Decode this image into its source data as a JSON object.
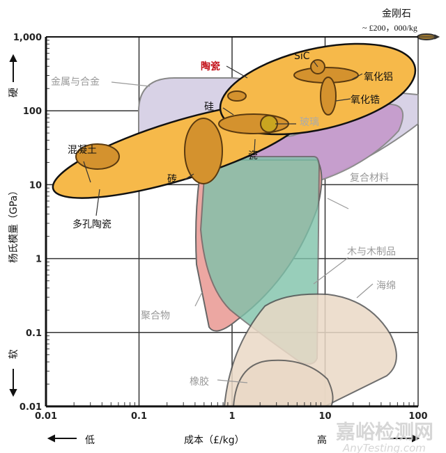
{
  "chart_data": {
    "type": "region",
    "xlabel": "成本（£/kg）",
    "ylabel": "杨氏模量（GPa）",
    "x_scale": "log",
    "y_scale": "log",
    "xlim": [
      0.01,
      100
    ],
    "ylim": [
      0.01,
      1000
    ],
    "grid": true,
    "x_ticks": [
      "0.01",
      "0.1",
      "1",
      "10",
      "100"
    ],
    "y_ticks": [
      "0.01",
      "0.1",
      "1",
      "10",
      "100",
      "1,000"
    ],
    "x_low": "低",
    "x_high": "高",
    "y_high": "硬",
    "y_low": "软",
    "diamond": {
      "label": "金刚石",
      "note": "~ £200，000/kg"
    },
    "regions": [
      {
        "name": "陶瓷",
        "color": "#f6b94a",
        "highlight": "#c4141c"
      },
      {
        "name": "金属与合金",
        "color": "#d8d2e6"
      },
      {
        "name": "复合材料",
        "color": "#c69ccc"
      },
      {
        "name": "木与木制品",
        "color": "#8fd1bd"
      },
      {
        "name": "聚合物",
        "color": "#eca7a2"
      },
      {
        "name": "海绵",
        "color": "#ead9c6"
      },
      {
        "name": "橡胶",
        "color": "#ead9c6"
      },
      {
        "name": "多孔陶瓷",
        "color": "#f6b94a"
      },
      {
        "name": "混凝土",
        "color": "#d4922e"
      },
      {
        "name": "砖",
        "color": "#d4922e"
      },
      {
        "name": "瓷",
        "color": "#d4922e"
      },
      {
        "name": "玻璃",
        "color": "#c9a520"
      },
      {
        "name": "硅",
        "color": "#d4922e"
      },
      {
        "name": "SiC",
        "color": "#d4922e"
      },
      {
        "name": "氧化铝",
        "color": "#d4922e"
      },
      {
        "name": "氧化锆",
        "color": "#d4922e"
      }
    ]
  },
  "watermark": {
    "cn": "嘉峪检测网",
    "en": "AnyTesting.com"
  }
}
